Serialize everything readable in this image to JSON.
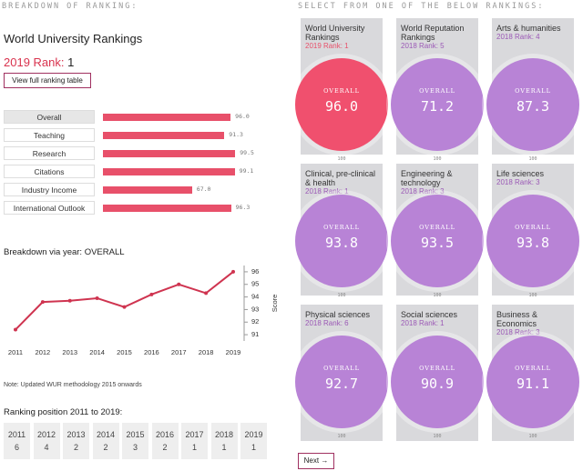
{
  "left": {
    "heading": "BREAKDOWN OF RANKING:",
    "title": "World University Rankings",
    "rank_label": "2019 Rank:",
    "rank": 1,
    "button": "View full ranking table",
    "breakdown": {
      "categories": [
        "Overall",
        "Teaching",
        "Research",
        "Citations",
        "Industry Income",
        "International Outlook"
      ],
      "values": [
        96.0,
        91.3,
        99.5,
        99.1,
        67.0,
        96.3
      ],
      "value_labels": [
        "96.0",
        "91.3",
        "99.5",
        "99.1",
        "67.0",
        "96.3"
      ],
      "color": "#e8506a"
    }
  },
  "chart_data": {
    "type": "line",
    "title": "Breakdown via year: OVERALL",
    "categories": [
      "2011",
      "2012",
      "2013",
      "2014",
      "2015",
      "2016",
      "2017",
      "2018",
      "2019"
    ],
    "y_label": "Score",
    "values": [
      91.4,
      93.6,
      93.7,
      93.9,
      93.2,
      94.2,
      95.0,
      94.3,
      96.0
    ],
    "color": "#cf3450",
    "ylim": [
      90.5,
      96.5
    ],
    "yticks": [
      91,
      92,
      93,
      94,
      95,
      96
    ]
  },
  "note": "Note: Updated WUR methodology 2015 onwards",
  "history": {
    "title": "Ranking position 2011 to 2019:",
    "years": [
      "2011",
      "2012",
      "2013",
      "2014",
      "2015",
      "2016",
      "2017",
      "2018",
      "2019"
    ],
    "ranks": [
      6,
      4,
      2,
      2,
      3,
      2,
      1,
      1,
      1
    ]
  },
  "right": {
    "heading": "SELECT FROM ONE OF THE BELOW RANKINGS:",
    "next": "Next →",
    "cards": [
      {
        "name": "World University Rankings",
        "rank_label": "2019 Rank:",
        "rank": 1,
        "metric": "OVERALL",
        "score": 96.0,
        "score_label": "96.0",
        "max": 100
      },
      {
        "name": "World Reputation Rankings",
        "rank_label": "2018 Rank:",
        "rank": 5,
        "metric": "OVERALL",
        "score": 71.2,
        "score_label": "71.2",
        "max": 100
      },
      {
        "name": "Arts & humanities",
        "rank_label": "2018 Rank:",
        "rank": 4,
        "metric": "OVERALL",
        "score": 87.3,
        "score_label": "87.3",
        "max": 100
      },
      {
        "name": "Clinical, pre-clinical & health",
        "rank_label": "2018 Rank:",
        "rank": 1,
        "metric": "OVERALL",
        "score": 93.8,
        "score_label": "93.8",
        "max": 100
      },
      {
        "name": "Engineering & technology",
        "rank_label": "2018 Rank:",
        "rank": 3,
        "metric": "OVERALL",
        "score": 93.5,
        "score_label": "93.5",
        "max": 100
      },
      {
        "name": "Life sciences",
        "rank_label": "2018 Rank:",
        "rank": 3,
        "metric": "OVERALL",
        "score": 93.8,
        "score_label": "93.8",
        "max": 100
      },
      {
        "name": "Physical sciences",
        "rank_label": "2018 Rank:",
        "rank": 6,
        "metric": "OVERALL",
        "score": 92.7,
        "score_label": "92.7",
        "max": 100
      },
      {
        "name": "Social sciences",
        "rank_label": "2018 Rank:",
        "rank": 1,
        "metric": "OVERALL",
        "score": 90.9,
        "score_label": "90.9",
        "max": 100
      },
      {
        "name": "Business & Economics",
        "rank_label": "2018 Rank:",
        "rank": 3,
        "metric": "OVERALL",
        "score": 91.1,
        "score_label": "91.1",
        "max": 100
      }
    ]
  }
}
